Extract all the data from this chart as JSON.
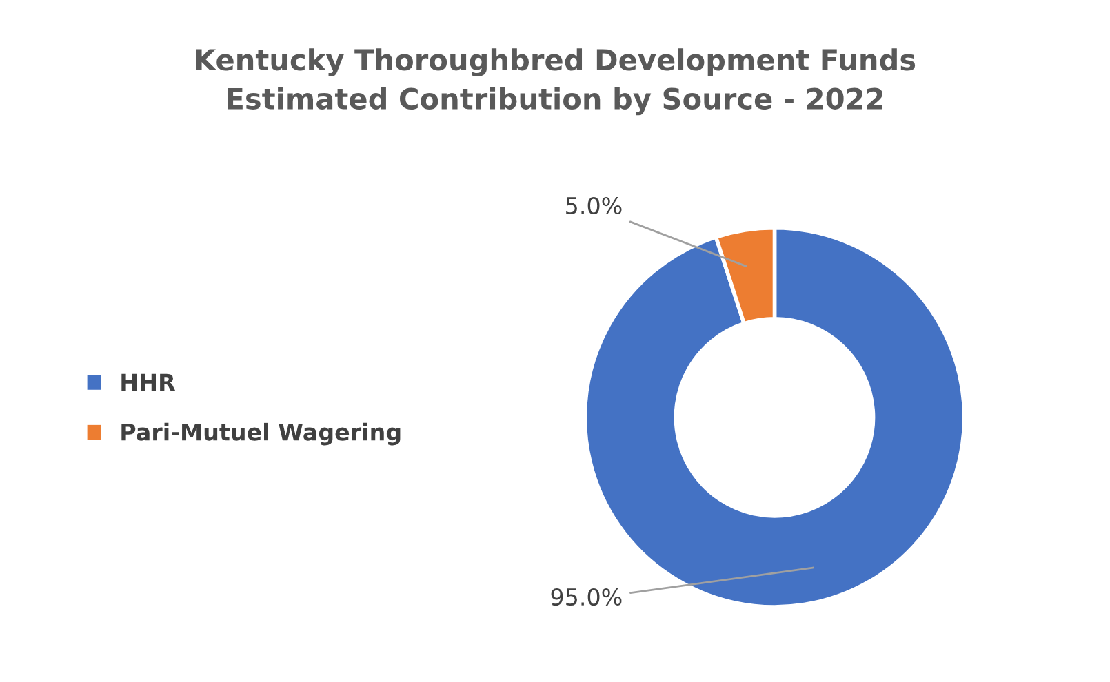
{
  "chart_data": {
    "type": "donut",
    "title": "Kentucky Thoroughbred Development Funds\nEstimated Contribution by Source - 2022",
    "categories": [
      "HHR",
      "Pari-Mutuel Wagering"
    ],
    "values": [
      95,
      5
    ],
    "colors": [
      "#4472c4",
      "#ed7d31"
    ],
    "value_labels": [
      "95.0%",
      "5.0%"
    ],
    "legend": "left"
  }
}
